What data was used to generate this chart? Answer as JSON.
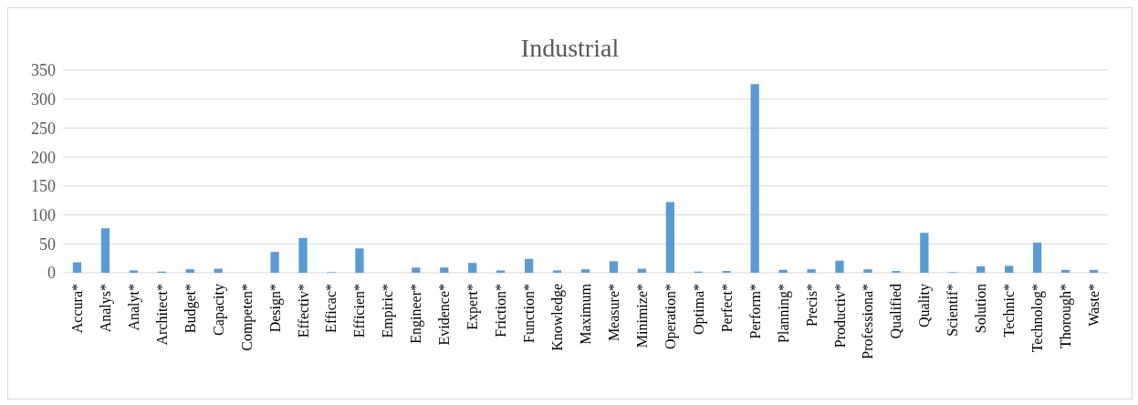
{
  "chart_data": {
    "type": "bar",
    "title": "Industrial",
    "categories": [
      "Accura*",
      "Analys*",
      "Analyt*",
      "Architect*",
      "Budget*",
      "Capacity",
      "Competen*",
      "Design*",
      "Effectiv*",
      "Efficac*",
      "Efficien*",
      "Empiric*",
      "Engineer*",
      "Evidence*",
      "Expert*",
      "Friction*",
      "Function*",
      "Knowledge",
      "Maximum",
      "Measure*",
      "Minimize*",
      "Operation*",
      "Optima*",
      "Perfect*",
      "Perform*",
      "Planning*",
      "Precis*",
      "Productiv*",
      "Professiona*",
      "Qualified",
      "Quality",
      "Scientif*",
      "Solution",
      "Technic*",
      "Technolog*",
      "Thorough*",
      "Waste*"
    ],
    "values": [
      18,
      77,
      4,
      2,
      6,
      7,
      0,
      36,
      60,
      1,
      42,
      0,
      9,
      9,
      17,
      4,
      24,
      4,
      6,
      20,
      7,
      122,
      2,
      3,
      326,
      5,
      6,
      21,
      6,
      3,
      69,
      1,
      11,
      12,
      52,
      5,
      5
    ],
    "color": "#5b9bd5",
    "ylim": [
      0,
      350
    ],
    "yticks": [
      0,
      50,
      100,
      150,
      200,
      250,
      300,
      350
    ],
    "grid": "y"
  }
}
